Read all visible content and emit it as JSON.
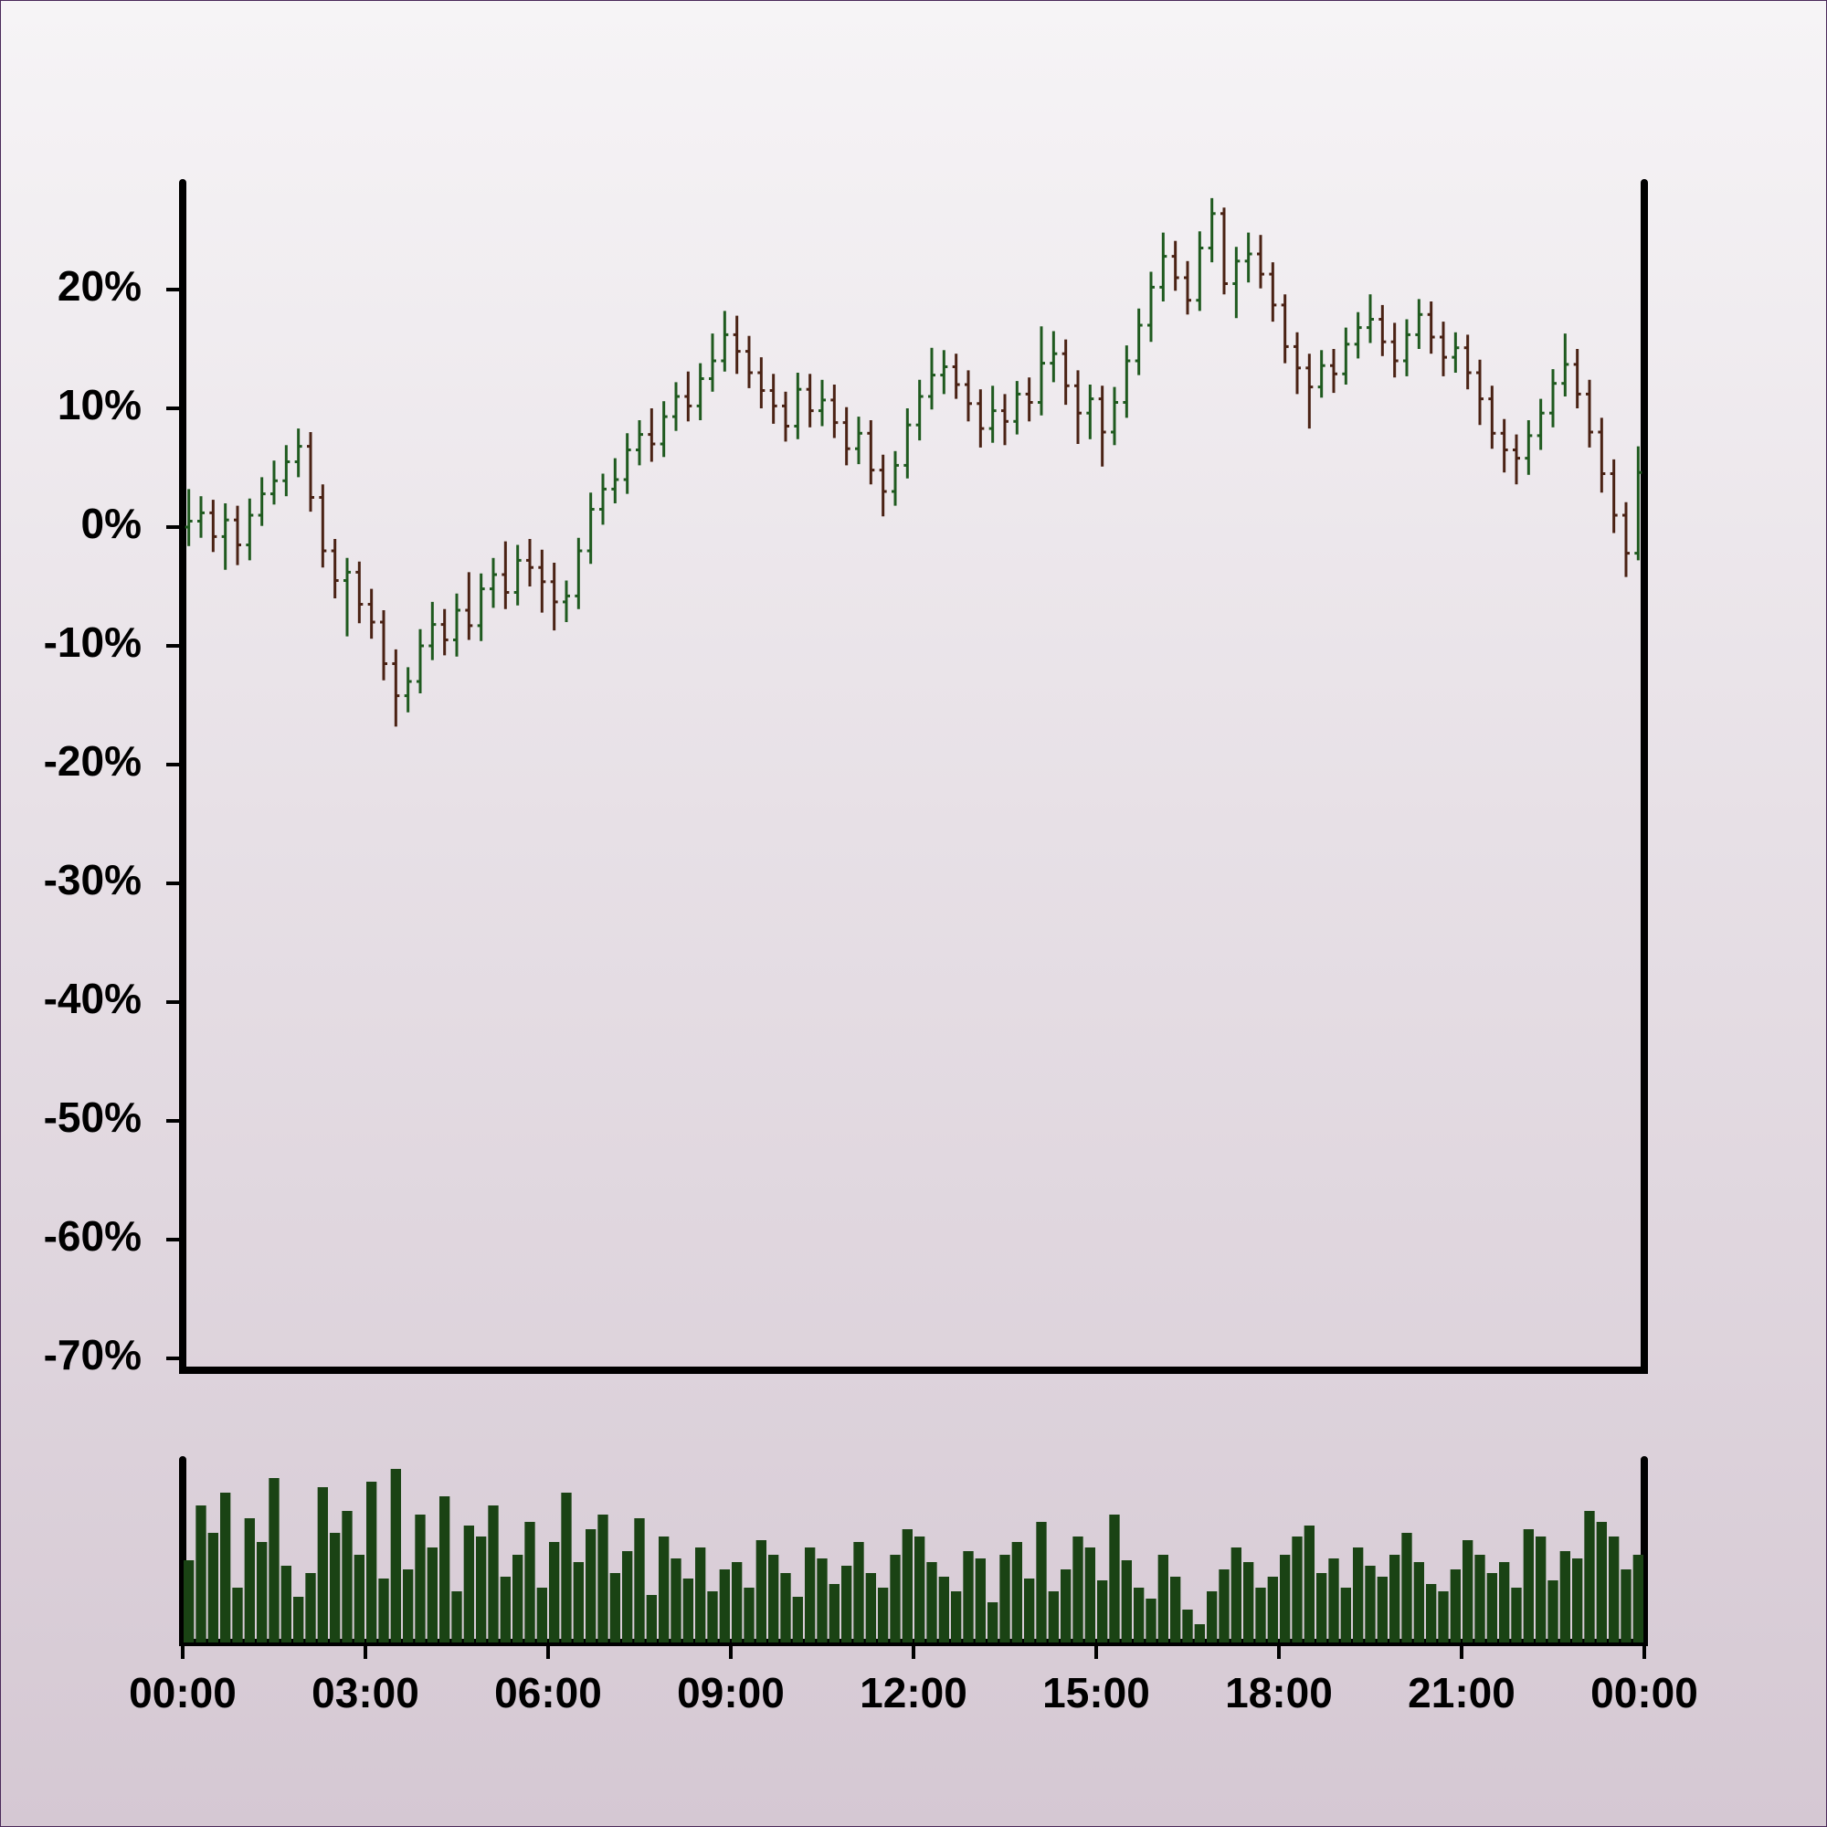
{
  "chart_data": {
    "type": "ohlc",
    "x": [
      0,
      0.2,
      0.4,
      0.6,
      0.8,
      1,
      1.2,
      1.4,
      1.6,
      1.8,
      2,
      2.2,
      2.4,
      2.6,
      2.8,
      3,
      3.2,
      3.4,
      3.6,
      3.8,
      4,
      4.2,
      4.4,
      4.6,
      4.8,
      5,
      5.2,
      5.4,
      5.6,
      5.8,
      6,
      6.2,
      6.4,
      6.6,
      6.8,
      7,
      7.2,
      7.4,
      7.6,
      7.8,
      8,
      8.2,
      8.4,
      8.6,
      8.8,
      9,
      9.2,
      9.4,
      9.6,
      9.8,
      10,
      10.2,
      10.4,
      10.6,
      10.8,
      11,
      11.2,
      11.4,
      11.6,
      11.8,
      12,
      12.2,
      12.4,
      12.6,
      12.8,
      13,
      13.2,
      13.4,
      13.6,
      13.8,
      14,
      14.2,
      14.4,
      14.6,
      14.8,
      15,
      15.2,
      15.4,
      15.6,
      15.8,
      16,
      16.2,
      16.4,
      16.6,
      16.8,
      17,
      17.2,
      17.4,
      17.6,
      17.8,
      18,
      18.2,
      18.4,
      18.6,
      18.8,
      19,
      19.2,
      19.4,
      19.6,
      19.8,
      20,
      20.2,
      20.4,
      20.6,
      20.8,
      21,
      21.2,
      21.4,
      21.6,
      21.8,
      22,
      22.2,
      22.4,
      22.6,
      22.8,
      23,
      23.2,
      23.4,
      23.6,
      23.8
    ],
    "open": [
      0,
      0.5,
      1.2,
      -0.8,
      0.6,
      -1.5,
      1.0,
      2.8,
      3.9,
      5.5,
      6.8,
      2.5,
      -2.0,
      -4.5,
      -3.8,
      -6.5,
      -8.0,
      -11.5,
      -14.2,
      -13.0,
      -10.0,
      -8.2,
      -9.5,
      -7.0,
      -8.3,
      -5.2,
      -4.0,
      -5.5,
      -2.8,
      -3.4,
      -4.6,
      -6.3,
      -5.8,
      -2.0,
      1.5,
      3.2,
      4.0,
      6.5,
      7.8,
      7.0,
      9.3,
      11.0,
      10.2,
      12.5,
      14.0,
      16.2,
      14.8,
      13.0,
      11.5,
      10.2,
      8.5,
      11.6,
      9.8,
      10.7,
      8.8,
      6.6,
      7.9,
      4.8,
      3.0,
      5.2,
      8.6,
      11.0,
      12.8,
      13.5,
      12.0,
      10.4,
      8.3,
      9.8,
      8.9,
      11.2,
      10.5,
      13.8,
      14.6,
      11.9,
      9.6,
      10.8,
      8.0,
      10.5,
      14.0,
      17.0,
      20.2,
      22.8,
      21.0,
      19.1,
      23.5,
      26.4,
      20.5,
      22.4,
      23.0,
      21.3,
      18.7,
      15.2,
      13.4,
      11.8,
      13.6,
      12.9,
      15.4,
      16.8,
      17.5,
      15.6,
      14.0,
      16.2,
      17.9,
      16.0,
      14.3,
      15.1,
      13.0,
      10.8,
      7.9,
      6.5,
      5.8,
      7.7,
      9.6,
      12.1,
      13.7,
      11.2,
      8.0,
      4.5,
      1.0,
      -2.2
    ],
    "high": [
      3.2,
      2.6,
      2.3,
      2.0,
      1.8,
      2.4,
      4.2,
      5.6,
      6.9,
      8.3,
      8.0,
      3.6,
      -1.0,
      -2.6,
      -2.9,
      -5.2,
      -7.0,
      -10.3,
      -11.8,
      -8.6,
      -6.3,
      -6.9,
      -5.6,
      -3.8,
      -3.9,
      -2.6,
      -1.2,
      -1.5,
      -1.0,
      -1.9,
      -3.0,
      -4.5,
      -0.9,
      2.9,
      4.5,
      5.8,
      7.9,
      9.0,
      10.0,
      10.6,
      12.2,
      13.1,
      13.8,
      16.3,
      18.2,
      17.8,
      16.1,
      14.3,
      12.9,
      11.4,
      13.0,
      12.9,
      12.4,
      12.0,
      10.1,
      9.3,
      9.0,
      6.1,
      6.4,
      10.0,
      12.4,
      15.1,
      14.9,
      14.6,
      13.2,
      11.6,
      11.9,
      11.2,
      12.3,
      12.6,
      16.9,
      16.5,
      15.8,
      13.2,
      12.0,
      11.9,
      11.8,
      15.3,
      18.4,
      21.5,
      24.8,
      24.1,
      22.4,
      24.9,
      27.7,
      26.9,
      23.6,
      24.8,
      24.6,
      22.3,
      19.6,
      16.4,
      14.6,
      14.9,
      15.0,
      16.8,
      18.1,
      19.6,
      18.7,
      17.2,
      17.5,
      19.2,
      19.0,
      17.3,
      16.4,
      16.2,
      14.1,
      11.9,
      9.1,
      7.8,
      9.0,
      10.8,
      13.3,
      16.3,
      15.0,
      12.4,
      9.2,
      5.7,
      2.1,
      6.8
    ],
    "low": [
      -1.6,
      -0.9,
      -2.1,
      -3.6,
      -3.2,
      -2.8,
      0.1,
      1.9,
      2.6,
      4.2,
      1.3,
      -3.4,
      -6.0,
      -9.2,
      -8.1,
      -9.4,
      -12.9,
      -16.8,
      -15.6,
      -14.0,
      -11.2,
      -10.8,
      -10.9,
      -9.5,
      -9.6,
      -6.8,
      -6.9,
      -6.6,
      -5.0,
      -7.2,
      -8.7,
      -8.0,
      -6.9,
      -3.1,
      0.2,
      2.0,
      2.8,
      5.2,
      5.5,
      5.9,
      8.1,
      8.9,
      9.0,
      11.4,
      13.1,
      12.9,
      11.7,
      10.0,
      8.7,
      7.2,
      7.4,
      8.4,
      8.5,
      7.5,
      5.2,
      5.3,
      3.6,
      0.9,
      1.8,
      4.1,
      7.3,
      9.9,
      11.2,
      10.8,
      8.9,
      6.7,
      7.1,
      6.9,
      7.8,
      8.9,
      9.4,
      12.2,
      10.3,
      7.0,
      7.4,
      5.1,
      6.9,
      9.2,
      12.8,
      15.6,
      19.0,
      19.9,
      17.9,
      18.2,
      22.3,
      19.6,
      17.6,
      20.6,
      20.1,
      17.3,
      13.8,
      11.2,
      8.3,
      10.9,
      11.3,
      12.0,
      14.2,
      15.5,
      14.4,
      12.6,
      12.7,
      15.0,
      14.6,
      12.7,
      13.0,
      11.6,
      8.6,
      6.6,
      4.6,
      3.6,
      4.4,
      6.5,
      8.4,
      11.0,
      10.0,
      6.7,
      2.9,
      -0.5,
      -4.2,
      -2.8
    ],
    "close": [
      0.5,
      1.2,
      -0.8,
      0.6,
      -1.5,
      1.0,
      2.8,
      3.9,
      5.5,
      6.8,
      2.5,
      -2.0,
      -4.5,
      -3.8,
      -6.5,
      -8.0,
      -11.5,
      -14.2,
      -13.0,
      -10.0,
      -8.2,
      -9.5,
      -7.0,
      -8.3,
      -5.2,
      -4.0,
      -5.5,
      -2.8,
      -3.4,
      -4.6,
      -6.3,
      -5.8,
      -2.0,
      1.5,
      3.2,
      4.0,
      6.5,
      7.8,
      7.0,
      9.3,
      11.0,
      10.2,
      12.5,
      14.0,
      16.2,
      14.8,
      13.0,
      11.5,
      10.2,
      8.5,
      11.6,
      9.8,
      10.7,
      8.8,
      6.6,
      7.9,
      4.8,
      3.0,
      5.2,
      8.6,
      11.0,
      12.8,
      13.5,
      12.0,
      10.4,
      8.3,
      9.8,
      8.9,
      11.2,
      10.5,
      13.8,
      14.6,
      11.9,
      9.6,
      10.8,
      8.0,
      10.5,
      14.0,
      17.0,
      20.2,
      22.8,
      21.0,
      19.1,
      23.5,
      26.4,
      20.5,
      22.4,
      23.0,
      21.3,
      18.7,
      15.2,
      13.4,
      11.8,
      13.6,
      12.9,
      15.4,
      16.8,
      17.5,
      15.6,
      14.0,
      16.2,
      17.9,
      16.0,
      14.3,
      15.1,
      13.0,
      10.8,
      7.9,
      6.5,
      5.8,
      7.7,
      9.6,
      12.1,
      13.7,
      11.2,
      8.0,
      4.5,
      1.0,
      -2.2,
      4.6
    ],
    "volume": [
      45,
      75,
      60,
      82,
      30,
      68,
      55,
      90,
      42,
      25,
      38,
      85,
      60,
      72,
      48,
      88,
      35,
      95,
      40,
      70,
      52,
      80,
      28,
      64,
      58,
      75,
      36,
      48,
      66,
      30,
      55,
      82,
      44,
      62,
      70,
      38,
      50,
      68,
      26,
      58,
      46,
      35,
      52,
      28,
      40,
      44,
      30,
      56,
      48,
      38,
      25,
      52,
      46,
      32,
      42,
      55,
      38,
      30,
      48,
      62,
      58,
      44,
      36,
      28,
      50,
      46,
      22,
      48,
      55,
      35,
      66,
      28,
      40,
      58,
      52,
      34,
      70,
      45,
      30,
      24,
      48,
      36,
      18,
      10,
      28,
      40,
      52,
      44,
      30,
      36,
      48,
      58,
      64,
      38,
      46,
      30,
      52,
      42,
      36,
      48,
      60,
      44,
      32,
      28,
      40,
      56,
      48,
      38,
      44,
      30,
      62,
      58,
      34,
      50,
      46,
      72,
      66,
      58,
      40,
      48
    ],
    "xlim": [
      0,
      24
    ],
    "ylim": [
      -71,
      29
    ],
    "volume_ylim": [
      0,
      100
    ],
    "yticks": [
      {
        "value": 20,
        "label": "20%"
      },
      {
        "value": 10,
        "label": "10%"
      },
      {
        "value": 0,
        "label": "0%"
      },
      {
        "value": -10,
        "label": "-10%"
      },
      {
        "value": -20,
        "label": "-20%"
      },
      {
        "value": -30,
        "label": "-30%"
      },
      {
        "value": -40,
        "label": "-40%"
      },
      {
        "value": -50,
        "label": "-50%"
      },
      {
        "value": -60,
        "label": "-60%"
      },
      {
        "value": -70,
        "label": "-70%"
      }
    ],
    "xticks": [
      {
        "value": 0,
        "label": "00:00"
      },
      {
        "value": 3,
        "label": "03:00"
      },
      {
        "value": 6,
        "label": "06:00"
      },
      {
        "value": 9,
        "label": "09:00"
      },
      {
        "value": 12,
        "label": "12:00"
      },
      {
        "value": 15,
        "label": "15:00"
      },
      {
        "value": 18,
        "label": "18:00"
      },
      {
        "value": 21,
        "label": "21:00"
      },
      {
        "value": 24,
        "label": "00:00"
      }
    ],
    "up_color": "#1f5a1f",
    "down_color": "#4a2214",
    "volume_color": "#1a4314"
  }
}
